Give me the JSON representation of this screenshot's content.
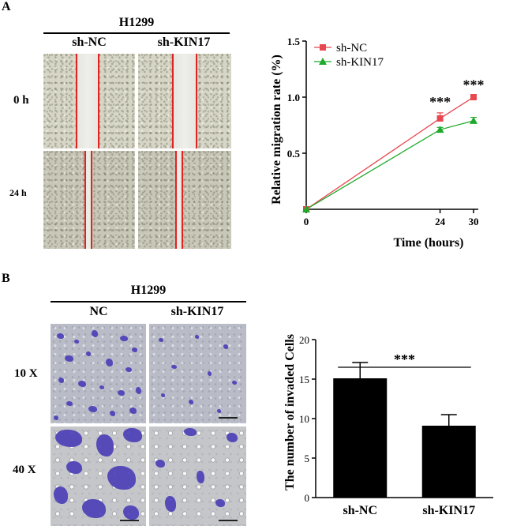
{
  "panel_a": {
    "letter": "A",
    "group_title": "H1299",
    "col_labels": [
      "sh-NC",
      "sh-KIN17"
    ],
    "row_labels": [
      "0 h",
      "24 h"
    ]
  },
  "panel_b": {
    "letter": "B",
    "group_title": "H1299",
    "col_labels": [
      "NC",
      "sh-KIN17"
    ],
    "row_labels": [
      "10 X",
      "40 X"
    ]
  },
  "colors": {
    "series_nc": "#e8474f",
    "series_kin17": "#1faa2c",
    "scratch_line": "#e32222",
    "crystal_violet": "#4b3fb6"
  },
  "chart_data": [
    {
      "type": "line",
      "title": "",
      "xlabel": "Time (hours)",
      "ylabel": "Relative migration rate (%)",
      "x": [
        0,
        24,
        30
      ],
      "x_ticks": [
        "0",
        "24",
        "30"
      ],
      "ylim": [
        0,
        1.5
      ],
      "y_ticks": [
        "0.5",
        "1.0",
        "1.5"
      ],
      "grid": false,
      "legend_position": "top-left",
      "series": [
        {
          "name": "sh-NC",
          "values": [
            0,
            0.81,
            1.0
          ],
          "errors": [
            0,
            0.05,
            0.01
          ],
          "marker": "square"
        },
        {
          "name": "sh-KIN17",
          "values": [
            0,
            0.71,
            0.79
          ],
          "errors": [
            0,
            0.02,
            0.03
          ],
          "marker": "triangle"
        }
      ],
      "annotations": [
        {
          "x": 24,
          "text": "***"
        },
        {
          "x": 30,
          "text": "***"
        }
      ]
    },
    {
      "type": "bar",
      "title": "",
      "xlabel": "",
      "ylabel": "The number of invaded Cells",
      "categories": [
        "sh-NC",
        "sh-KIN17"
      ],
      "values": [
        15.1,
        9.1
      ],
      "errors": [
        2.0,
        1.4
      ],
      "ylim": [
        0,
        20
      ],
      "y_ticks": [
        "0",
        "5",
        "10",
        "15",
        "20"
      ],
      "grid": false,
      "significance": "***"
    }
  ]
}
